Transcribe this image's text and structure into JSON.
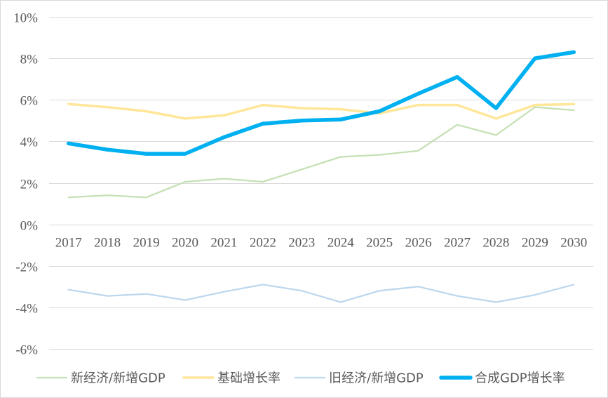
{
  "chart_data": {
    "type": "line",
    "title": "",
    "xlabel": "",
    "ylabel": "",
    "categories": [
      "2017",
      "2018",
      "2019",
      "2020",
      "2021",
      "2022",
      "2023",
      "2024",
      "2025",
      "2026",
      "2027",
      "2028",
      "2029",
      "2030"
    ],
    "ylim": [
      -6,
      10
    ],
    "yticks": [
      -6,
      -4,
      -2,
      0,
      2,
      4,
      6,
      8,
      10
    ],
    "ytick_labels": [
      "-6%",
      "-4%",
      "-2%",
      "0%",
      "2%",
      "4%",
      "6%",
      "8%",
      "10%"
    ],
    "grid": true,
    "legend_position": "bottom",
    "series": [
      {
        "name": "新经济/新增GDP",
        "color": "#c5e0b4",
        "line_weight": "thin",
        "values": [
          1.3,
          1.4,
          1.3,
          2.05,
          2.2,
          2.05,
          2.65,
          3.25,
          3.35,
          3.55,
          4.8,
          4.3,
          5.65,
          5.5
        ]
      },
      {
        "name": "基础增长率",
        "color": "#ffe699",
        "line_weight": "medium",
        "values": [
          5.8,
          5.65,
          5.45,
          5.1,
          5.25,
          5.75,
          5.6,
          5.55,
          5.35,
          5.75,
          5.75,
          5.1,
          5.75,
          5.8
        ]
      },
      {
        "name": "旧经济/新增GDP",
        "color": "#bdd7ee",
        "line_weight": "thin",
        "values": [
          -3.15,
          -3.45,
          -3.35,
          -3.65,
          -3.25,
          -2.9,
          -3.2,
          -3.75,
          -3.2,
          -3.0,
          -3.45,
          -3.75,
          -3.4,
          -2.9
        ]
      },
      {
        "name": "合成GDP增长率",
        "color": "#00b0f0",
        "line_weight": "thick",
        "values": [
          3.9,
          3.6,
          3.4,
          3.4,
          4.2,
          4.85,
          5.0,
          5.05,
          5.45,
          6.3,
          7.1,
          5.6,
          8.0,
          8.3
        ]
      }
    ]
  }
}
